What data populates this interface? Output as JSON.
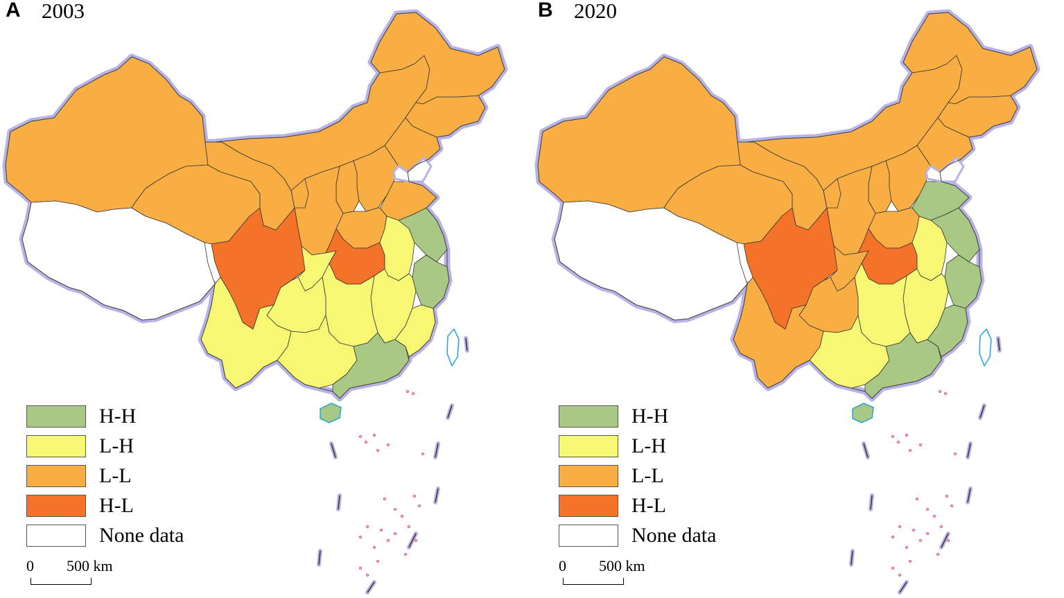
{
  "colors": {
    "HH": "#a8c883",
    "LH": "#f6f772",
    "LL": "#f9ae44",
    "HL": "#f57329",
    "none": "#ffffff",
    "border_glow": "#b8b3e6",
    "island_pink": "#d9318e",
    "coast_blue": "#2aa9de"
  },
  "panels": [
    {
      "letter": "A",
      "year": "2003",
      "classes": {
        "xinjiang": "LL",
        "tibet": "none",
        "qinghai": "LL",
        "gansu": "LL",
        "inner_mongolia": "LL",
        "heilongjiang": "LL",
        "jilin": "LL",
        "liaoning": "LL",
        "beijing": "HL",
        "hebei": "LL",
        "shanxi": "LL",
        "shandong": "LL",
        "henan": "LL",
        "shaanxi": "LL",
        "ningxia": "LL",
        "sichuan": "HL",
        "chongqing": "LH",
        "hubei": "HL",
        "anhui": "LH",
        "jiangsu": "HH",
        "zhejiang": "HH",
        "jiangxi": "LH",
        "hunan": "LH",
        "guizhou": "LH",
        "yunnan": "LH",
        "guangxi": "LH",
        "guangdong": "HH",
        "fujian": "LH",
        "hainan": "HH",
        "taiwan": "none"
      }
    },
    {
      "letter": "B",
      "year": "2020",
      "classes": {
        "xinjiang": "LL",
        "tibet": "none",
        "qinghai": "LL",
        "gansu": "LL",
        "inner_mongolia": "LL",
        "heilongjiang": "LL",
        "jilin": "LL",
        "liaoning": "LL",
        "beijing": "HH",
        "hebei": "LL",
        "shanxi": "LL",
        "shandong": "HH",
        "henan": "LL",
        "shaanxi": "LL",
        "ningxia": "LL",
        "sichuan": "HL",
        "chongqing": "LL",
        "hubei": "HL",
        "anhui": "LH",
        "jiangsu": "HH",
        "zhejiang": "HH",
        "jiangxi": "LH",
        "hunan": "LH",
        "guizhou": "LL",
        "yunnan": "LL",
        "guangxi": "LH",
        "guangdong": "HH",
        "fujian": "HH",
        "hainan": "HH",
        "taiwan": "none"
      }
    }
  ],
  "legend": [
    {
      "key": "HH",
      "label": "H-H"
    },
    {
      "key": "LH",
      "label": "L-H"
    },
    {
      "key": "LL",
      "label": "L-L"
    },
    {
      "key": "HL",
      "label": "H-L"
    },
    {
      "key": "none",
      "label": "None data"
    }
  ],
  "scale_bar": {
    "zero": "0",
    "text": "500 km"
  }
}
